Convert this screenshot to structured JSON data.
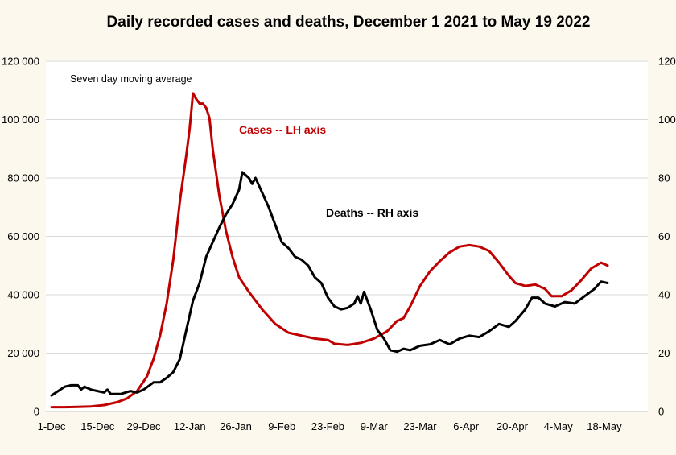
{
  "chart_data": {
    "type": "line",
    "title": "Daily recorded cases and deaths,  December 1 2021 to May 19 2022",
    "note": "Seven day moving average",
    "x_start": "2021-12-01",
    "x_end": "2022-05-19",
    "x_tick_labels": [
      "1-Dec",
      "15-Dec",
      "29-Dec",
      "12-Jan",
      "26-Jan",
      "9-Feb",
      "23-Feb",
      "9-Mar",
      "23-Mar",
      "6-Apr",
      "20-Apr",
      "4-May",
      "18-May"
    ],
    "y_left": {
      "range": [
        0,
        120000
      ],
      "tick_labels": [
        "0",
        "20 000",
        "40 000",
        "60 000",
        "80 000",
        "100 000",
        "120 000"
      ]
    },
    "y_right": {
      "range": [
        0,
        120
      ],
      "tick_labels": [
        "0",
        "20",
        "40",
        "60",
        "80",
        "100",
        "120"
      ]
    },
    "grid": "horizontal",
    "series": [
      {
        "name": "Cases -- LH axis",
        "axis": "left",
        "color": "#c00000",
        "points": [
          [
            "2021-12-01",
            1500
          ],
          [
            "2021-12-05",
            1500
          ],
          [
            "2021-12-09",
            1600
          ],
          [
            "2021-12-13",
            1700
          ],
          [
            "2021-12-17",
            2200
          ],
          [
            "2021-12-21",
            3200
          ],
          [
            "2021-12-24",
            4500
          ],
          [
            "2021-12-27",
            7000
          ],
          [
            "2021-12-30",
            12000
          ],
          [
            "2022-01-01",
            18000
          ],
          [
            "2022-01-03",
            26000
          ],
          [
            "2022-01-05",
            37000
          ],
          [
            "2022-01-07",
            52000
          ],
          [
            "2022-01-09",
            72000
          ],
          [
            "2022-01-11",
            88000
          ],
          [
            "2022-01-12",
            97000
          ],
          [
            "2022-01-13",
            109000
          ],
          [
            "2022-01-14",
            107000
          ],
          [
            "2022-01-15",
            105500
          ],
          [
            "2022-01-16",
            105500
          ],
          [
            "2022-01-17",
            104000
          ],
          [
            "2022-01-18",
            100500
          ],
          [
            "2022-01-19",
            90000
          ],
          [
            "2022-01-21",
            74000
          ],
          [
            "2022-01-23",
            62000
          ],
          [
            "2022-01-25",
            53000
          ],
          [
            "2022-01-27",
            46000
          ],
          [
            "2022-01-30",
            41000
          ],
          [
            "2022-02-03",
            35000
          ],
          [
            "2022-02-07",
            30000
          ],
          [
            "2022-02-11",
            27000
          ],
          [
            "2022-02-15",
            26000
          ],
          [
            "2022-02-19",
            25000
          ],
          [
            "2022-02-23",
            24500
          ],
          [
            "2022-02-25",
            23200
          ],
          [
            "2022-03-01",
            22800
          ],
          [
            "2022-03-05",
            23500
          ],
          [
            "2022-03-09",
            25000
          ],
          [
            "2022-03-13",
            27500
          ],
          [
            "2022-03-16",
            31000
          ],
          [
            "2022-03-18",
            32000
          ],
          [
            "2022-03-20",
            36000
          ],
          [
            "2022-03-23",
            43000
          ],
          [
            "2022-03-26",
            48000
          ],
          [
            "2022-03-29",
            51500
          ],
          [
            "2022-04-01",
            54500
          ],
          [
            "2022-04-04",
            56500
          ],
          [
            "2022-04-07",
            57000
          ],
          [
            "2022-04-10",
            56500
          ],
          [
            "2022-04-13",
            55000
          ],
          [
            "2022-04-16",
            51000
          ],
          [
            "2022-04-19",
            46500
          ],
          [
            "2022-04-21",
            44000
          ],
          [
            "2022-04-24",
            43000
          ],
          [
            "2022-04-27",
            43500
          ],
          [
            "2022-04-30",
            42000
          ],
          [
            "2022-05-02",
            39500
          ],
          [
            "2022-05-05",
            39500
          ],
          [
            "2022-05-08",
            41500
          ],
          [
            "2022-05-11",
            45000
          ],
          [
            "2022-05-14",
            49000
          ],
          [
            "2022-05-17",
            51000
          ],
          [
            "2022-05-19",
            50000
          ]
        ]
      },
      {
        "name": "Deaths -- RH axis",
        "axis": "right",
        "color": "#000000",
        "points": [
          [
            "2021-12-01",
            5.5
          ],
          [
            "2021-12-03",
            7
          ],
          [
            "2021-12-05",
            8.5
          ],
          [
            "2021-12-07",
            9
          ],
          [
            "2021-12-09",
            9
          ],
          [
            "2021-12-10",
            7.5
          ],
          [
            "2021-12-11",
            8.5
          ],
          [
            "2021-12-13",
            7.5
          ],
          [
            "2021-12-15",
            7
          ],
          [
            "2021-12-17",
            6.5
          ],
          [
            "2021-12-18",
            7.5
          ],
          [
            "2021-12-19",
            6
          ],
          [
            "2021-12-22",
            6
          ],
          [
            "2021-12-25",
            7
          ],
          [
            "2021-12-27",
            6.5
          ],
          [
            "2021-12-29",
            7.5
          ],
          [
            "2022-01-01",
            10
          ],
          [
            "2022-01-03",
            10
          ],
          [
            "2022-01-05",
            11.5
          ],
          [
            "2022-01-07",
            13.5
          ],
          [
            "2022-01-09",
            18
          ],
          [
            "2022-01-11",
            28
          ],
          [
            "2022-01-13",
            38
          ],
          [
            "2022-01-15",
            44
          ],
          [
            "2022-01-17",
            53
          ],
          [
            "2022-01-19",
            58
          ],
          [
            "2022-01-21",
            63
          ],
          [
            "2022-01-23",
            67.5
          ],
          [
            "2022-01-25",
            71
          ],
          [
            "2022-01-27",
            76
          ],
          [
            "2022-01-28",
            82
          ],
          [
            "2022-01-30",
            80
          ],
          [
            "2022-01-31",
            78
          ],
          [
            "2022-02-01",
            80
          ],
          [
            "2022-02-03",
            75
          ],
          [
            "2022-02-05",
            70
          ],
          [
            "2022-02-07",
            64
          ],
          [
            "2022-02-09",
            58
          ],
          [
            "2022-02-11",
            56
          ],
          [
            "2022-02-13",
            53
          ],
          [
            "2022-02-15",
            52
          ],
          [
            "2022-02-17",
            50
          ],
          [
            "2022-02-19",
            46
          ],
          [
            "2022-02-21",
            44
          ],
          [
            "2022-02-23",
            39
          ],
          [
            "2022-02-25",
            36
          ],
          [
            "2022-02-27",
            35
          ],
          [
            "2022-03-01",
            35.5
          ],
          [
            "2022-03-03",
            37
          ],
          [
            "2022-03-04",
            39.5
          ],
          [
            "2022-03-05",
            37
          ],
          [
            "2022-03-06",
            41
          ],
          [
            "2022-03-08",
            35
          ],
          [
            "2022-03-10",
            28
          ],
          [
            "2022-03-12",
            25
          ],
          [
            "2022-03-14",
            21
          ],
          [
            "2022-03-16",
            20.5
          ],
          [
            "2022-03-18",
            21.5
          ],
          [
            "2022-03-20",
            21
          ],
          [
            "2022-03-23",
            22.5
          ],
          [
            "2022-03-26",
            23
          ],
          [
            "2022-03-29",
            24.5
          ],
          [
            "2022-04-01",
            23
          ],
          [
            "2022-04-04",
            25
          ],
          [
            "2022-04-07",
            26
          ],
          [
            "2022-04-10",
            25.5
          ],
          [
            "2022-04-13",
            27.5
          ],
          [
            "2022-04-16",
            30
          ],
          [
            "2022-04-19",
            29
          ],
          [
            "2022-04-21",
            31
          ],
          [
            "2022-04-24",
            35
          ],
          [
            "2022-04-26",
            39
          ],
          [
            "2022-04-28",
            39
          ],
          [
            "2022-04-30",
            37
          ],
          [
            "2022-05-03",
            36
          ],
          [
            "2022-05-06",
            37.5
          ],
          [
            "2022-05-09",
            37
          ],
          [
            "2022-05-12",
            39.5
          ],
          [
            "2022-05-15",
            42
          ],
          [
            "2022-05-17",
            44.5
          ],
          [
            "2022-05-19",
            44
          ]
        ]
      }
    ],
    "annotations": [
      {
        "text": "Cases -- LH axis",
        "color": "#c00000"
      },
      {
        "text": "Deaths -- RH axis",
        "color": "#000000"
      }
    ]
  }
}
